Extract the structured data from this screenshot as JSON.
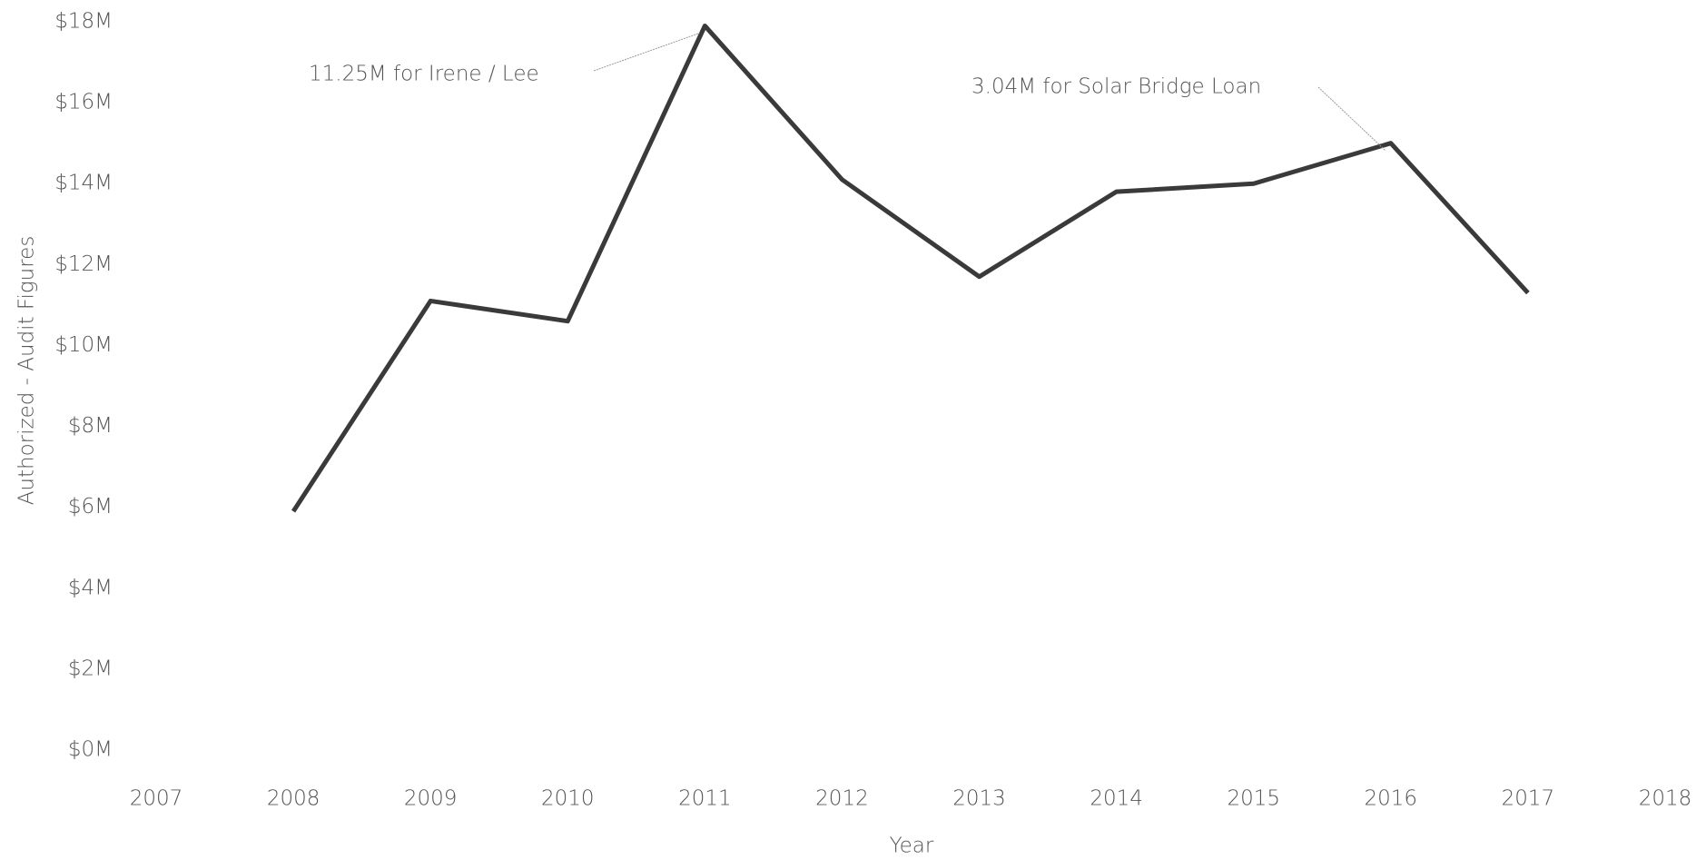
{
  "chart_data": {
    "type": "line",
    "x_label": "Year",
    "y_label": "Authorized - Audit Figures",
    "x": [
      2008,
      2009,
      2010,
      2011,
      2012,
      2013,
      2014,
      2015,
      2016,
      2017
    ],
    "series": [
      {
        "name": "Authorized - Audit Figures",
        "color": "#3a3a3a",
        "values": [
          5.9,
          11.1,
          10.6,
          17.9,
          14.1,
          11.7,
          13.8,
          14.0,
          15.0,
          11.3
        ]
      }
    ],
    "xlim": [
      2007,
      2018
    ],
    "xticks": [
      2007,
      2008,
      2009,
      2010,
      2011,
      2012,
      2013,
      2014,
      2015,
      2016,
      2017,
      2018
    ],
    "ylim": [
      0,
      18
    ],
    "yticks": [
      {
        "value": 0,
        "label": "$0M"
      },
      {
        "value": 2,
        "label": "$2M"
      },
      {
        "value": 4,
        "label": "$4M"
      },
      {
        "value": 6,
        "label": "$6M"
      },
      {
        "value": 8,
        "label": "$8M"
      },
      {
        "value": 10,
        "label": "$10M"
      },
      {
        "value": 12,
        "label": "$12M"
      },
      {
        "value": 14,
        "label": "$14M"
      },
      {
        "value": 16,
        "label": "$16M"
      },
      {
        "value": 18,
        "label": "$18M"
      }
    ],
    "grid": false,
    "annotations": [
      {
        "text": "11.25M  for Irene / Lee",
        "x": 2011
      },
      {
        "text": "3.04M for Solar Bridge Loan",
        "x": 2016
      }
    ]
  }
}
